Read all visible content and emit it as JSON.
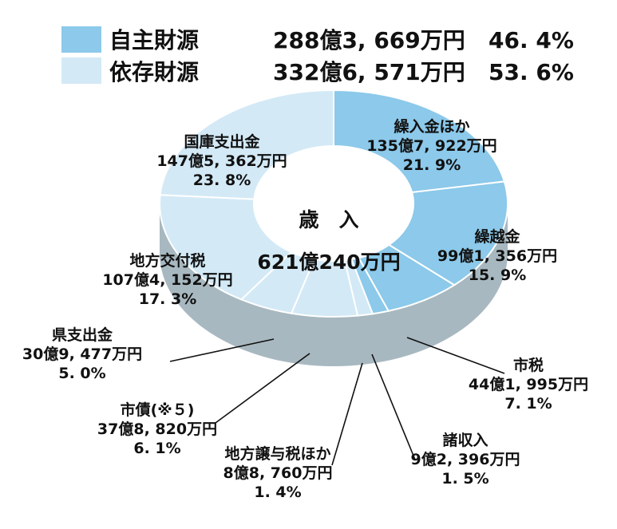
{
  "legend": [
    {
      "name": "自主財源",
      "amount": "288億3, 669万円",
      "percent": "46. 4%",
      "color": "#8cc9ea"
    },
    {
      "name": "依存財源",
      "amount": "332億6, 571万円",
      "percent": "53. 6%",
      "color": "#d3e9f6"
    }
  ],
  "center": {
    "title": "歳　入",
    "total": "621億240万円"
  },
  "colors": {
    "own": "#8cc9ea",
    "dependent": "#d3e9f6",
    "depth": "#a8b8c0",
    "border": "#ffffff",
    "leader": "#111111"
  },
  "chart_data": {
    "type": "pie",
    "title": "",
    "slices": [
      {
        "name": "繰入金ほか",
        "amount": "135億7, 922万円",
        "percent_label": "21. 9%",
        "value": 21.9,
        "group": "own"
      },
      {
        "name": "繰越金",
        "amount": "99億1, 356万円",
        "percent_label": "15. 9%",
        "value": 15.9,
        "group": "own"
      },
      {
        "name": "市税",
        "amount": "44億1, 995万円",
        "percent_label": "7. 1%",
        "value": 7.1,
        "group": "own"
      },
      {
        "name": "諸収入",
        "amount": "9億2, 396万円",
        "percent_label": "1. 5%",
        "value": 1.5,
        "group": "own"
      },
      {
        "name": "地方譲与税ほか",
        "amount": "8億8, 760万円",
        "percent_label": "1. 4%",
        "value": 1.4,
        "group": "dependent"
      },
      {
        "name": "市債(※５)",
        "amount": "37億8, 820万円",
        "percent_label": "6. 1%",
        "value": 6.1,
        "group": "dependent"
      },
      {
        "name": "県支出金",
        "amount": "30億9, 477万円",
        "percent_label": "5. 0%",
        "value": 5.0,
        "group": "dependent"
      },
      {
        "name": "地方交付税",
        "amount": "107億4, 152万円",
        "percent_label": "17. 3%",
        "value": 17.3,
        "group": "dependent"
      },
      {
        "name": "国庫支出金",
        "amount": "147億5, 362万円",
        "percent_label": "23. 8%",
        "value": 23.8,
        "group": "dependent"
      }
    ]
  }
}
